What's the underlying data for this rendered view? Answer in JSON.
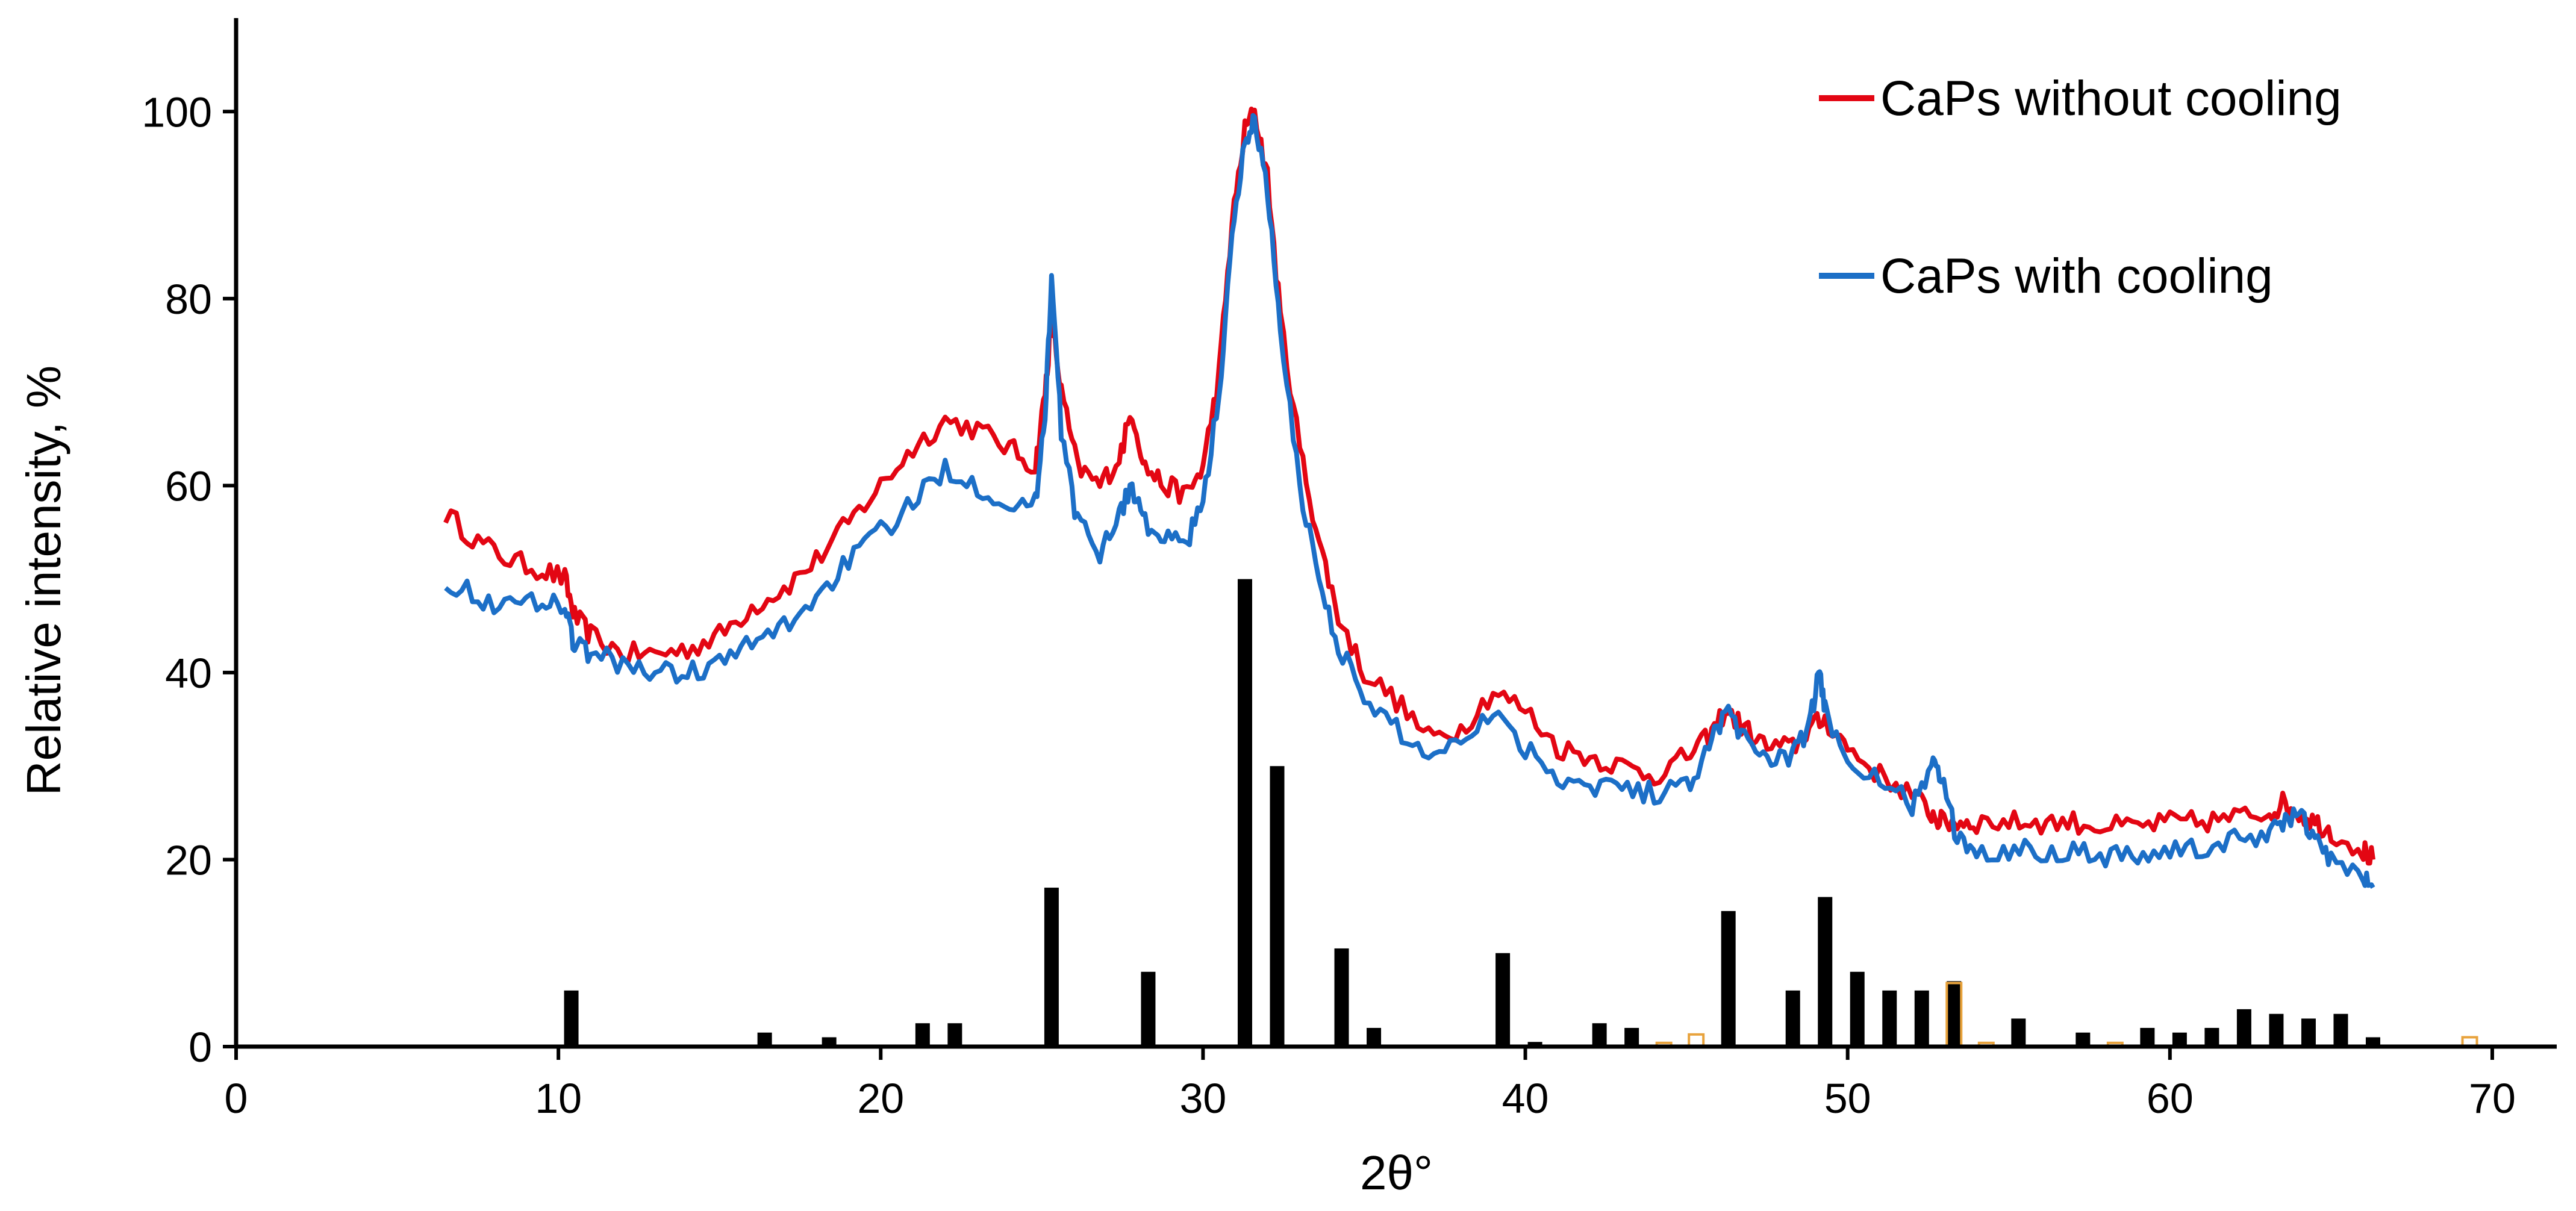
{
  "chart_data": {
    "type": "line",
    "xlabel": "2θ°",
    "ylabel": "Relative intensity, %",
    "xlim": [
      0,
      72
    ],
    "ylim": [
      0,
      110
    ],
    "x_ticks": [
      0,
      10,
      20,
      30,
      40,
      50,
      60,
      70
    ],
    "y_ticks": [
      0,
      20,
      40,
      60,
      80,
      100
    ],
    "grid": false,
    "legend_placement": "top-right",
    "series": [
      {
        "name": "CaPs without cooling",
        "color": "#e30613",
        "x": [
          6.5,
          7.5,
          8.5,
          9.5,
          10.2,
          10.5,
          11,
          12,
          13,
          14,
          15,
          16,
          17,
          18,
          19,
          20,
          21,
          22,
          23,
          24,
          24.8,
          25.1,
          25.3,
          25.6,
          26.1,
          26.8,
          27.4,
          27.8,
          28.2,
          28.8,
          29.5,
          30.0,
          30.5,
          30.9,
          31.3,
          31.6,
          32.0,
          32.4,
          33.0,
          33.6,
          34.2,
          35,
          36,
          37,
          38,
          39,
          40,
          41,
          42,
          43,
          44,
          45,
          45.7,
          46.2,
          46.8,
          47.5,
          48.3,
          48.8,
          49.3,
          50,
          51,
          52,
          52.6,
          52.9,
          53.4,
          54,
          55,
          56,
          57,
          58,
          59,
          60,
          61,
          62,
          63,
          63.5,
          64,
          64.5,
          65,
          66,
          66.3
        ],
        "y": [
          57,
          54,
          52,
          51,
          50,
          46,
          44,
          42,
          42,
          42.5,
          44,
          47,
          49,
          52,
          56,
          60,
          64,
          67,
          66,
          64,
          62,
          70,
          78,
          70,
          62,
          60,
          63,
          68,
          62,
          60,
          59,
          62,
          72,
          88,
          98,
          100,
          93,
          78,
          64,
          54,
          46,
          40,
          37,
          33,
          34,
          38,
          36,
          32,
          31,
          30,
          29,
          31,
          33,
          36,
          34,
          32,
          32,
          34,
          35,
          32,
          29,
          27,
          25,
          24,
          24,
          24,
          24,
          24,
          24,
          23.5,
          23.5,
          24,
          24,
          24.5,
          25,
          26,
          25,
          24,
          23,
          21,
          20
        ]
      },
      {
        "name": "CaPs with cooling",
        "color": "#1c6fc7",
        "x": [
          6.5,
          7.5,
          8.5,
          9.5,
          10.2,
          10.5,
          11,
          12,
          13,
          14,
          15,
          16,
          17,
          18,
          19,
          20,
          21,
          22,
          23,
          24,
          24.8,
          25.1,
          25.3,
          25.6,
          26.1,
          26.8,
          27.4,
          27.8,
          28.2,
          28.8,
          29.5,
          30.0,
          30.5,
          30.9,
          31.3,
          31.6,
          32.0,
          32.4,
          33.0,
          33.6,
          34.2,
          35,
          36,
          37,
          38,
          39,
          40,
          41,
          42,
          43,
          44,
          45,
          45.7,
          46.2,
          46.8,
          47.5,
          48.3,
          48.8,
          49.1,
          49.3,
          50,
          51,
          52,
          52.6,
          52.9,
          53.4,
          54,
          55,
          56,
          57,
          58,
          59,
          60,
          61,
          62,
          63,
          63.5,
          64,
          64.5,
          65,
          66,
          66.3
        ],
        "y": [
          50,
          48,
          47,
          48,
          47,
          43,
          42,
          41,
          40,
          40,
          41,
          43,
          45,
          48,
          52,
          55,
          58,
          62,
          60,
          58,
          58,
          68,
          82,
          66,
          56,
          53,
          57,
          60,
          56,
          54,
          54,
          58,
          70,
          86,
          97,
          99,
          92,
          76,
          60,
          50,
          43,
          37,
          34,
          31,
          33,
          36,
          32,
          29,
          28,
          28,
          27,
          28,
          32,
          36,
          33,
          31,
          31,
          34,
          40,
          36,
          31,
          28,
          26,
          30,
          29,
          22,
          21,
          21,
          21,
          21,
          20.5,
          20.5,
          21,
          21,
          22,
          23,
          24,
          25,
          22,
          20,
          18,
          17
        ]
      },
      {
        "name": "",
        "type": "bar",
        "color": "#000000",
        "x": [
          10.4,
          16.4,
          18.4,
          21.3,
          22.3,
          25.3,
          28.3,
          31.3,
          32.3,
          34.3,
          35.3,
          39.3,
          40.3,
          42.3,
          43.3,
          46.3,
          48.3,
          49.3,
          50.3,
          51.3,
          52.3,
          53.3,
          55.3,
          57.3,
          59.3,
          60.3,
          61.3,
          62.3,
          63.3,
          64.3,
          65.3,
          66.3
        ],
        "y": [
          6,
          1.5,
          1,
          2.5,
          2.5,
          17,
          8,
          50,
          30,
          10.5,
          2,
          10,
          0.5,
          2.5,
          2,
          14.5,
          6,
          16,
          8,
          6,
          6,
          7,
          3,
          1.5,
          2,
          1.5,
          2,
          4,
          3.5,
          3,
          3.5,
          1
        ]
      },
      {
        "name": "",
        "type": "bar",
        "color": "#e8a33d",
        "x": [
          44.3,
          45.3,
          53.3,
          54.3,
          58.3,
          69.3
        ],
        "y": [
          0.4,
          1.3,
          6.8,
          0.4,
          0.4,
          1
        ]
      }
    ]
  }
}
